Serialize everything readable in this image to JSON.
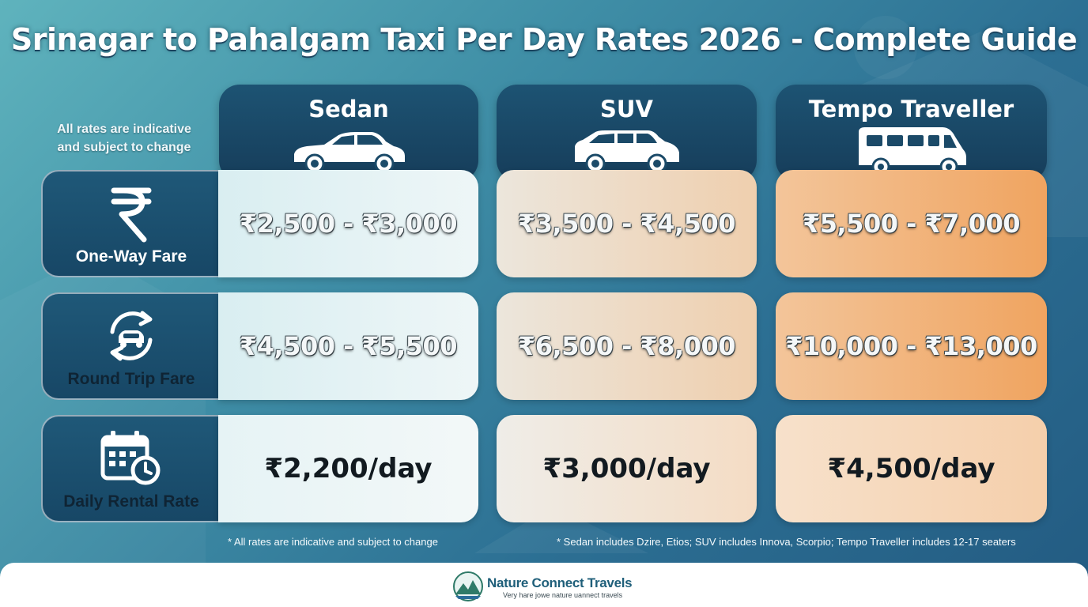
{
  "title": "Srinagar to Pahalgam Taxi Per Day Rates 2026 - Complete Guide",
  "note_left": [
    "All rates are indicative",
    "and subject to change"
  ],
  "columns": [
    {
      "name": "Sedan",
      "icon": "sedan-car-icon"
    },
    {
      "name": "SUV",
      "icon": "suv-car-icon"
    },
    {
      "name": "Tempo Traveller",
      "icon": "tempo-traveller-icon"
    }
  ],
  "rows": [
    {
      "label": "One-Way Fare",
      "icon": "rupee-icon",
      "values": [
        "₹2,500 - ₹3,000",
        "₹3,500 - ₹4,500",
        "₹5,500 - ₹7,000"
      ]
    },
    {
      "label": "Round Trip Fare",
      "icon": "round-trip-car-icon",
      "values": [
        "₹4,500 - ₹5,500",
        "₹6,500 - ₹8,000",
        "₹10,000 - ₹13,000"
      ]
    },
    {
      "label": "Daily Rental Rate",
      "icon": "calendar-clock-icon",
      "values": [
        "₹2,200/day",
        "₹3,000/day",
        "₹4,500/day"
      ]
    }
  ],
  "footnotes": {
    "left": "* All rates are indicative and subject to change",
    "right": "* Sedan includes Dzire, Etios; SUV includes Innova, Scorpio; Tempo Traveller includes 12-17 seaters"
  },
  "brand": {
    "name": "Nature Connect Travels",
    "tagline": "Very hare jowe nature uannect travels",
    "logo_icon": "mountain-logo-icon"
  },
  "colors": {
    "header_bg": "#163d5a",
    "sedan_cell": "#e3f1f3",
    "suv_cell": "#eedccb",
    "tempo_cell": "#f0b37a"
  }
}
